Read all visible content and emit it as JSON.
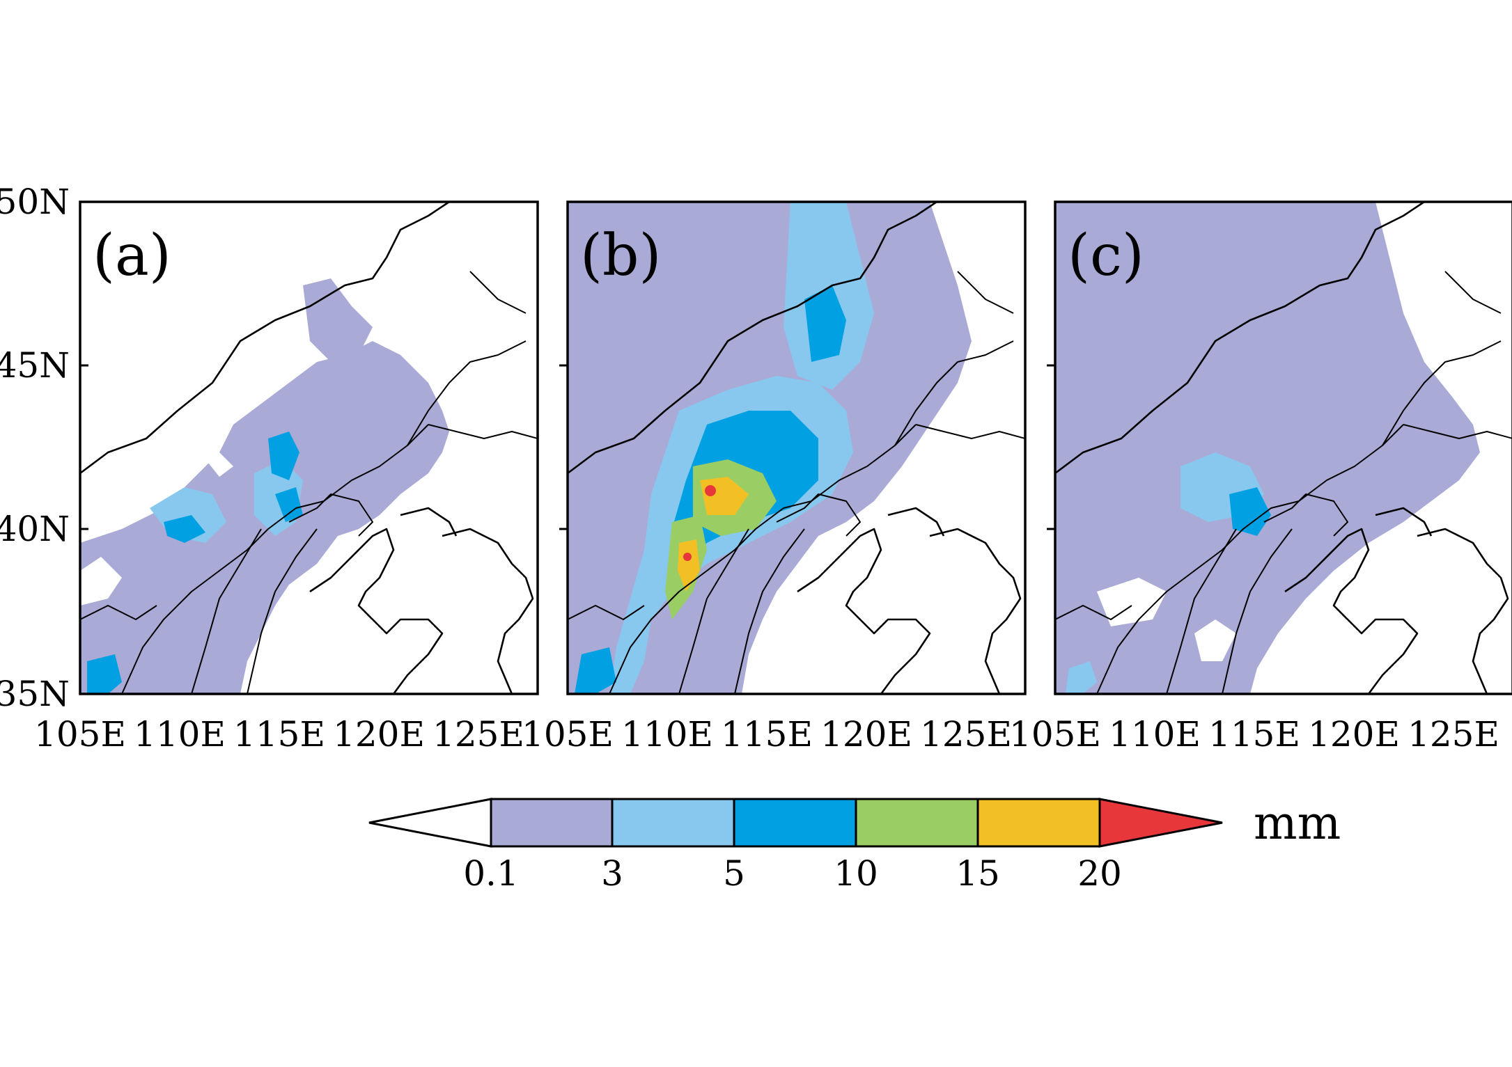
{
  "figure": {
    "panels": [
      {
        "label": "(a)"
      },
      {
        "label": "(b)"
      },
      {
        "label": "(c)"
      }
    ],
    "lon_ticks": [
      "105E",
      "110E",
      "115E",
      "120E",
      "125E"
    ],
    "lat_ticks": [
      "50N",
      "45N",
      "40N",
      "35N"
    ],
    "lon_range": [
      105,
      128
    ],
    "lat_range": [
      35,
      50
    ]
  },
  "colorbar": {
    "levels": [
      "0.1",
      "3",
      "5",
      "10",
      "15",
      "20"
    ],
    "colors": [
      "#ffffff",
      "#aaaad6",
      "#88c8ee",
      "#00a0e2",
      "#9acd64",
      "#f2bf24",
      "#e8373a"
    ],
    "unit": "mm"
  }
}
